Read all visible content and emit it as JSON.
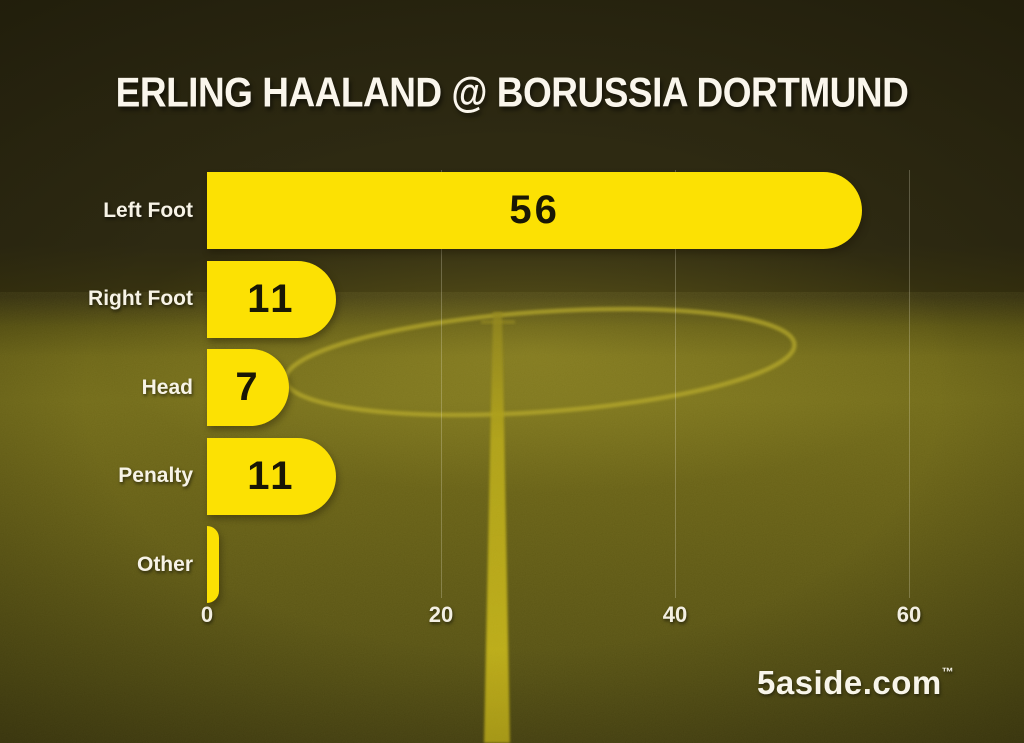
{
  "title": "ERLING HAALAND @ BORUSSIA DORTMUND",
  "branding": {
    "text": "5aside.com",
    "trademark": "™"
  },
  "colors": {
    "bar": "#FCE103",
    "bar_value_text": "#191705",
    "label_text": "#F7F3E6",
    "background_top": "#2E2A12",
    "grass": "#665F14",
    "pitch_line": "#BFAE16",
    "gridline": "rgba(238,236,214,0.26)"
  },
  "chart_data": {
    "type": "bar",
    "orientation": "horizontal",
    "title": "ERLING HAALAND @ BORUSSIA DORTMUND",
    "categories": [
      "Left Foot",
      "Right Foot",
      "Head",
      "Penalty",
      "Other"
    ],
    "values": [
      56,
      11,
      7,
      11,
      1
    ],
    "value_labels": [
      "56",
      "11",
      "7",
      "11",
      ""
    ],
    "x_ticks": [
      0,
      20,
      40,
      60
    ],
    "xlim": [
      0,
      66
    ],
    "xlabel": "",
    "ylabel": "",
    "legend": false,
    "grid": "faint vertical gridlines at 20, 40, 60",
    "bar_color": "#FCE103",
    "background": "dark olive football pitch photo with halfway line and centre circle"
  }
}
